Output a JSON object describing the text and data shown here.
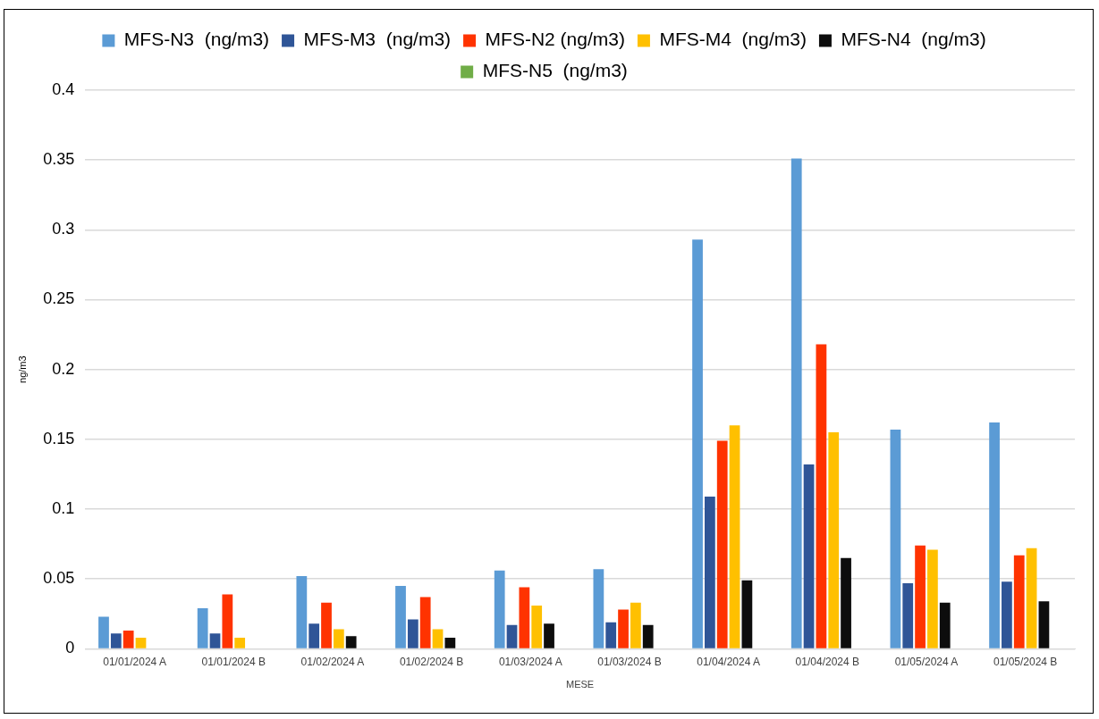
{
  "chart_data": {
    "type": "bar",
    "xlabel": "MESE",
    "ylabel": "ng/m3",
    "categories": [
      "01/01/2024 A",
      "01/01/2024 B",
      "01/02/2024 A",
      "01/02/2024 B",
      "01/03/2024 A",
      "01/03/2024 B",
      "01/04/2024 A",
      "01/04/2024 B",
      "01/05/2024 A",
      "01/05/2024 B"
    ],
    "series": [
      {
        "name": "MFS-N3  (ng/m3)",
        "color": "#5b9bd5",
        "values": [
          0.023,
          0.029,
          0.052,
          0.045,
          0.056,
          0.057,
          0.293,
          0.351,
          0.157,
          0.162
        ]
      },
      {
        "name": "MFS-M3  (ng/m3)",
        "color": "#2f5597",
        "values": [
          0.011,
          0.011,
          0.018,
          0.021,
          0.017,
          0.019,
          0.109,
          0.132,
          0.047,
          0.048
        ]
      },
      {
        "name": "MFS-N2 (ng/m3)",
        "color": "#ff3300",
        "values": [
          0.013,
          0.039,
          0.033,
          0.037,
          0.044,
          0.028,
          0.149,
          0.218,
          0.074,
          0.067
        ]
      },
      {
        "name": "MFS-M4  (ng/m3)",
        "color": "#ffc000",
        "values": [
          0.008,
          0.008,
          0.014,
          0.014,
          0.031,
          0.033,
          0.16,
          0.155,
          0.071,
          0.072
        ]
      },
      {
        "name": "MFS-N4  (ng/m3)",
        "color": "#0d0d0d",
        "values": [
          null,
          null,
          0.009,
          0.008,
          0.018,
          0.017,
          0.049,
          0.065,
          0.033,
          0.034
        ]
      },
      {
        "name": "MFS-N5  (ng/m3)",
        "color": "#70ad47",
        "values": [
          null,
          null,
          null,
          null,
          null,
          null,
          null,
          null,
          null,
          null
        ]
      }
    ],
    "ylim": [
      0,
      0.4
    ],
    "yticks": [
      0,
      0.05,
      0.1,
      0.15,
      0.2,
      0.25,
      0.3,
      0.35,
      0.4
    ],
    "grid": "y",
    "legend": "top"
  }
}
